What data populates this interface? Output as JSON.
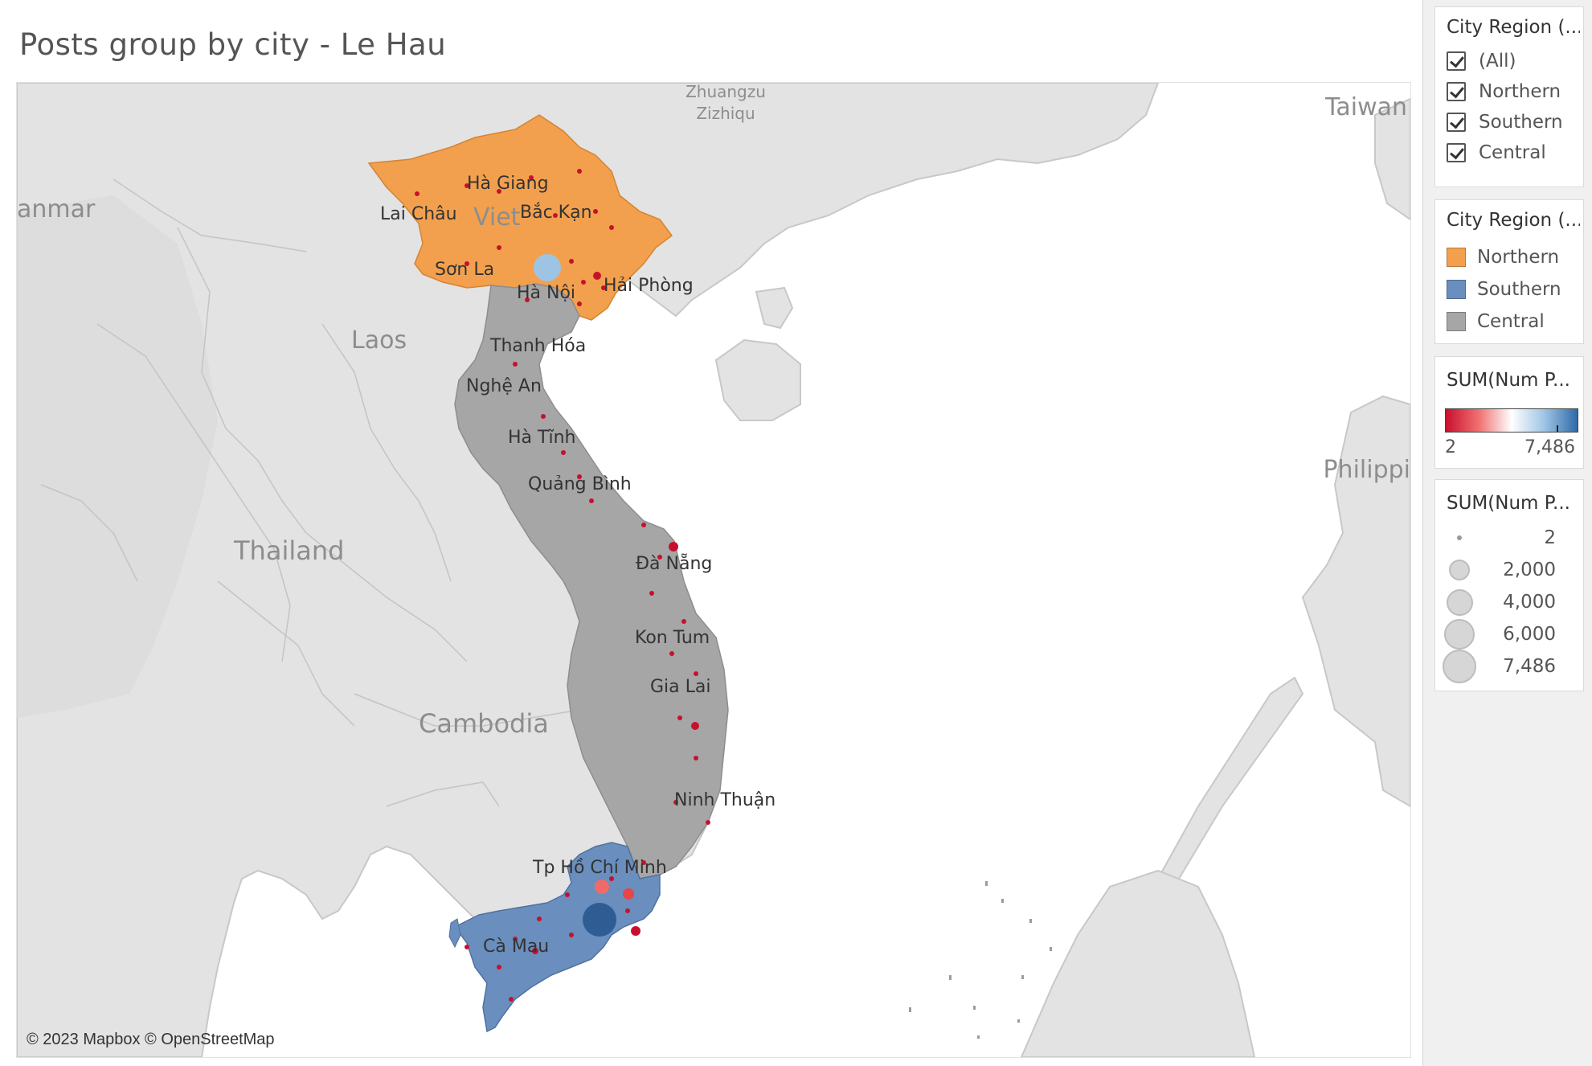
{
  "title": "Posts group by city -  Le Hau",
  "map": {
    "attribution": "© 2023 Mapbox © OpenStreetMap",
    "region_colors": {
      "Northern": "#f3a04e",
      "Southern": "#6a8ebd",
      "Central": "#a6a6a6"
    },
    "country_labels": [
      "Zhuangzu",
      "Zizhiqu",
      "Taiwan",
      "anmar",
      "Viet",
      "Laos",
      "Thailand",
      "Cambodia",
      "Philippi"
    ],
    "city_labels": [
      "Hà Giang",
      "Lai Châu",
      "Bắc Kạn",
      "Sơn La",
      "Hà Nội",
      "Hải Phòng",
      "Thanh Hóa",
      "Nghệ An",
      "Hà Tĩnh",
      "Quảng Bình",
      "Đà Nẵng",
      "Kon Tum",
      "Gia Lai",
      "Ninh Thuận",
      "Tp Hồ Chí Minh",
      "Cà Mau"
    ]
  },
  "filter": {
    "title": "City Region (...",
    "items": [
      {
        "label": "(All)",
        "checked": true
      },
      {
        "label": "Northern",
        "checked": true
      },
      {
        "label": "Southern",
        "checked": true
      },
      {
        "label": "Central",
        "checked": true
      }
    ]
  },
  "region_legend": {
    "title": "City Region (...",
    "items": [
      {
        "label": "Northern",
        "color": "#f3a04e"
      },
      {
        "label": "Southern",
        "color": "#6a8ebd"
      },
      {
        "label": "Central",
        "color": "#a6a6a6"
      }
    ]
  },
  "color_legend": {
    "title": "SUM(Num P...",
    "min_label": "2",
    "max_label": "7,486",
    "colors": [
      "#c8102e",
      "#f07070",
      "#ffffff",
      "#9ec4e4",
      "#2f6aa8"
    ]
  },
  "size_legend": {
    "title": "SUM(Num P...",
    "items": [
      {
        "label": "2",
        "value": 2
      },
      {
        "label": "2,000",
        "value": 2000
      },
      {
        "label": "4,000",
        "value": 4000
      },
      {
        "label": "6,000",
        "value": 6000
      },
      {
        "label": "7,486",
        "value": 7486
      }
    ]
  }
}
